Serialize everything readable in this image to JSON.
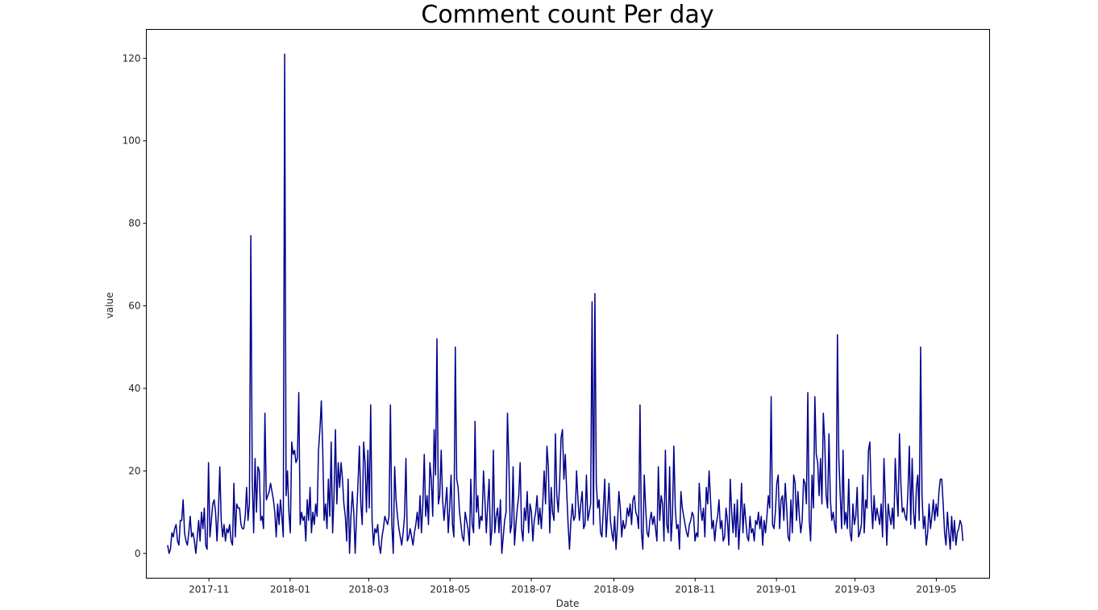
{
  "chart_data": {
    "type": "line",
    "title": "Comment count Per day",
    "xlabel": "Date",
    "ylabel": "value",
    "xlim": [
      "2017-09-15",
      "2019-06-10"
    ],
    "ylim": [
      -6,
      127
    ],
    "grid": false,
    "line_color": "#00008b",
    "x_ticks": [
      "2017-11",
      "2018-01",
      "2018-03",
      "2018-05",
      "2018-07",
      "2018-09",
      "2018-11",
      "2019-01",
      "2019-03",
      "2019-05"
    ],
    "y_ticks": [
      0,
      20,
      40,
      60,
      80,
      100,
      120
    ],
    "series": [
      {
        "x_start": "2017-10-01",
        "x_end": "2019-05-21",
        "values": [
          2,
          0,
          1,
          5,
          4,
          6,
          7,
          3,
          2,
          8,
          8,
          13,
          5,
          3,
          2,
          5,
          9,
          4,
          5,
          3,
          0,
          4,
          8,
          3,
          10,
          6,
          11,
          2,
          1,
          22,
          4,
          8,
          12,
          13,
          10,
          3,
          10,
          21,
          8,
          4,
          7,
          3,
          6,
          5,
          7,
          3,
          2,
          17,
          4,
          12,
          11,
          11,
          7,
          6,
          6,
          9,
          16,
          8,
          12,
          77,
          18,
          5,
          23,
          10,
          21,
          20,
          8,
          9,
          6,
          34,
          13,
          14,
          15,
          17,
          15,
          13,
          10,
          4,
          12,
          7,
          13,
          9,
          4,
          121,
          14,
          20,
          10,
          5,
          27,
          24,
          25,
          22,
          23,
          39,
          7,
          10,
          8,
          9,
          3,
          13,
          8,
          16,
          5,
          10,
          7,
          12,
          9,
          25,
          30,
          37,
          25,
          8,
          12,
          6,
          18,
          9,
          27,
          5,
          14,
          30,
          12,
          22,
          16,
          22,
          18,
          12,
          9,
          3,
          18,
          0,
          9,
          15,
          10,
          0,
          9,
          17,
          26,
          12,
          7,
          27,
          22,
          10,
          25,
          11,
          36,
          8,
          2,
          6,
          5,
          7,
          2,
          0,
          4,
          6,
          9,
          8,
          7,
          9,
          36,
          7,
          0,
          21,
          13,
          9,
          6,
          4,
          2,
          5,
          9,
          23,
          3,
          4,
          6,
          4,
          2,
          5,
          7,
          10,
          6,
          14,
          5,
          12,
          24,
          9,
          14,
          7,
          22,
          18,
          9,
          30,
          19,
          52,
          12,
          14,
          25,
          13,
          8,
          12,
          16,
          5,
          11,
          19,
          7,
          4,
          50,
          18,
          16,
          10,
          7,
          4,
          3,
          10,
          8,
          6,
          2,
          18,
          7,
          5,
          32,
          10,
          14,
          6,
          9,
          8,
          20,
          13,
          5,
          12,
          18,
          2,
          6,
          25,
          5,
          9,
          11,
          5,
          13,
          0,
          4,
          8,
          10,
          34,
          22,
          5,
          7,
          21,
          2,
          7,
          11,
          14,
          22,
          6,
          3,
          11,
          8,
          15,
          5,
          12,
          10,
          3,
          8,
          10,
          14,
          7,
          11,
          6,
          12,
          20,
          12,
          26,
          21,
          5,
          16,
          10,
          8,
          29,
          14,
          10,
          17,
          28,
          30,
          18,
          24,
          15,
          7,
          1,
          8,
          12,
          8,
          9,
          20,
          13,
          8,
          12,
          15,
          6,
          7,
          19,
          8,
          10,
          12,
          61,
          7,
          63,
          17,
          11,
          13,
          5,
          4,
          11,
          18,
          4,
          10,
          17,
          8,
          5,
          3,
          9,
          1,
          7,
          15,
          11,
          4,
          8,
          6,
          7,
          11,
          9,
          12,
          7,
          13,
          14,
          10,
          9,
          6,
          36,
          5,
          1,
          19,
          11,
          5,
          4,
          8,
          10,
          7,
          9,
          6,
          3,
          21,
          8,
          14,
          12,
          3,
          25,
          7,
          5,
          21,
          3,
          9,
          26,
          11,
          6,
          7,
          1,
          15,
          11,
          9,
          7,
          5,
          4,
          7,
          8,
          10,
          9,
          3,
          5,
          4,
          17,
          11,
          8,
          11,
          4,
          16,
          12,
          20,
          13,
          6,
          8,
          3,
          7,
          9,
          13,
          6,
          8,
          3,
          4,
          11,
          8,
          2,
          18,
          10,
          5,
          12,
          4,
          13,
          1,
          8,
          17,
          5,
          12,
          8,
          4,
          3,
          9,
          5,
          6,
          3,
          8,
          7,
          10,
          6,
          9,
          2,
          8,
          5,
          9,
          14,
          11,
          38,
          7,
          6,
          10,
          17,
          19,
          6,
          13,
          14,
          8,
          17,
          11,
          4,
          3,
          13,
          5,
          19,
          17,
          8,
          15,
          9,
          5,
          8,
          18,
          17,
          12,
          39,
          8,
          3,
          19,
          11,
          38,
          24,
          22,
          14,
          23,
          12,
          34,
          27,
          14,
          11,
          29,
          13,
          8,
          10,
          7,
          5,
          53,
          23,
          14,
          6,
          25,
          7,
          10,
          6,
          18,
          5,
          3,
          12,
          7,
          9,
          16,
          4,
          5,
          7,
          19,
          5,
          13,
          11,
          25,
          27,
          13,
          6,
          14,
          8,
          11,
          9,
          7,
          12,
          4,
          23,
          13,
          2,
          12,
          9,
          7,
          11,
          6,
          23,
          15,
          9,
          29,
          17,
          10,
          11,
          9,
          8,
          15,
          26,
          7,
          23,
          10,
          6,
          16,
          19,
          8,
          50,
          14,
          6,
          9,
          2,
          5,
          12,
          6,
          9,
          13,
          8,
          12,
          9,
          15,
          18,
          18,
          12,
          5,
          2,
          10,
          5,
          1,
          9,
          3,
          8,
          2,
          5,
          6,
          8,
          7,
          3
        ]
      }
    ]
  }
}
